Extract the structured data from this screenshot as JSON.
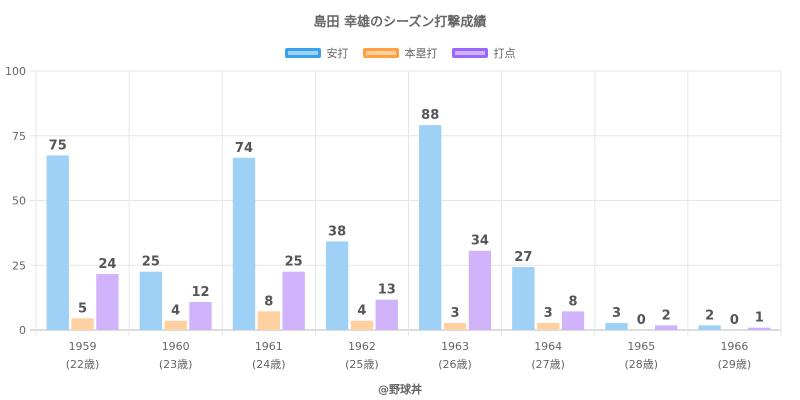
{
  "chart_data": {
    "type": "bar",
    "title": "島田 幸雄のシーズン打撃成績",
    "categories": [
      "1959",
      "1960",
      "1961",
      "1962",
      "1963",
      "1964",
      "1965",
      "1966"
    ],
    "category_sublabels": [
      "(22歳)",
      "(23歳)",
      "(24歳)",
      "(25歳)",
      "(26歳)",
      "(27歳)",
      "(28歳)",
      "(29歳)"
    ],
    "series": [
      {
        "name": "安打",
        "values": [
          75,
          25,
          74,
          38,
          88,
          27,
          3,
          2
        ],
        "plotted": [
          67.4,
          22.5,
          66.5,
          34.2,
          79.1,
          24.3,
          2.7,
          1.8
        ],
        "fill": "#9fd0f5",
        "border": "#36a2eb"
      },
      {
        "name": "本塁打",
        "values": [
          5,
          4,
          8,
          4,
          3,
          3,
          0,
          0
        ],
        "plotted": [
          4.5,
          3.6,
          7.2,
          3.6,
          2.7,
          2.7,
          0,
          0
        ],
        "fill": "#ffd0a0",
        "border": "#ff9f40"
      },
      {
        "name": "打点",
        "values": [
          24,
          12,
          25,
          13,
          34,
          8,
          2,
          1
        ],
        "plotted": [
          21.6,
          10.8,
          22.5,
          11.7,
          30.6,
          7.2,
          1.8,
          0.9
        ],
        "fill": "#d1b3fb",
        "border": "#9966ff"
      }
    ],
    "y_ticks": [
      "0",
      "25",
      "50",
      "75",
      "100"
    ],
    "ylim": [
      0,
      100
    ],
    "grid": true,
    "legend_position": "top"
  },
  "credit": "@野球丼"
}
